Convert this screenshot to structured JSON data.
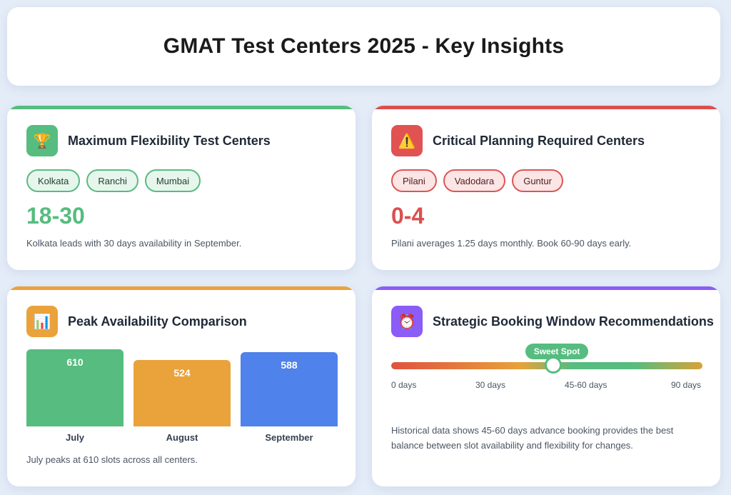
{
  "header": {
    "title": "GMAT Test Centers 2025 - Key Insights"
  },
  "cards": {
    "flex": {
      "icon": "trophy-icon",
      "icon_glyph": "🏆",
      "accent": "#56bc7f",
      "title": "Maximum Flexibility Test Centers",
      "tags": [
        "Kolkata",
        "Ranchi",
        "Mumbai"
      ],
      "range": "18-30",
      "desc": "Kolkata leads with 30 days availability in September."
    },
    "critical": {
      "icon": "warning-icon",
      "icon_glyph": "⚠️",
      "accent": "#dc4f4f",
      "title": "Critical Planning Required Centers",
      "tags": [
        "Pilani",
        "Vadodara",
        "Guntur"
      ],
      "range": "0-4",
      "desc": "Pilani averages 1.25 days monthly. Book 60-90 days early."
    },
    "peak": {
      "icon": "bar-chart-icon",
      "icon_glyph": "📊",
      "accent": "#eaa23a",
      "title": "Peak Availability Comparison",
      "desc": "July peaks at 610 slots across all centers."
    },
    "booking": {
      "icon": "alarm-clock-icon",
      "icon_glyph": "⏰",
      "accent": "#8b5cf6",
      "title": "Strategic Booking Window Recommendations",
      "sweet_spot": "Sweet Spot",
      "sweet_spot_position": 0.52,
      "ticks": [
        "0 days",
        "30 days",
        "45-60 days",
        "90 days"
      ],
      "desc_line1": "Historical data shows 45-60 days advance booking provides the best",
      "desc_line2": "balance between slot availability and flexibility for changes."
    }
  },
  "chart_data": {
    "type": "bar",
    "categories": [
      "July",
      "August",
      "September"
    ],
    "values": [
      610,
      524,
      588
    ],
    "colors": [
      "#56bc7f",
      "#eaa23a",
      "#4f82ea"
    ],
    "ylim": [
      0,
      610
    ]
  }
}
